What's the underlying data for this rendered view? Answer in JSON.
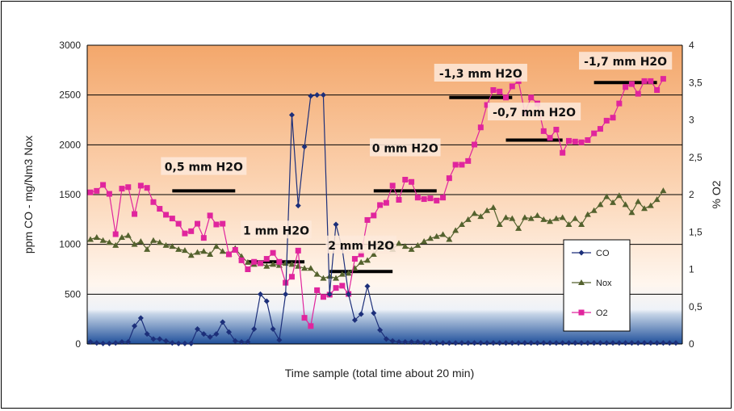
{
  "chart_data": {
    "type": "line",
    "xlabel": "Time sample (total time about 20 min)",
    "ylabel": "ppm CO - mg/Nm3 Nox",
    "y2label": "% O2",
    "ylim": [
      0,
      3000
    ],
    "y2lim": [
      0,
      4
    ],
    "yticks": [
      "0",
      "500",
      "1000",
      "1500",
      "2000",
      "2500",
      "3000"
    ],
    "y2ticks": [
      "0",
      "0,5",
      "1",
      "1,5",
      "2",
      "2,5",
      "3",
      "3,5",
      "4"
    ],
    "grid": "horizontal",
    "legend_position": "right",
    "background": {
      "top_color": "#f0a56a",
      "bottom_color": "#1f4f9a"
    },
    "series": [
      {
        "name": "CO",
        "axis": "left",
        "color": "#1c2f7a",
        "marker": "diamond",
        "values": [
          20,
          10,
          5,
          5,
          10,
          20,
          20,
          180,
          260,
          100,
          50,
          50,
          30,
          10,
          5,
          5,
          5,
          150,
          100,
          70,
          100,
          220,
          120,
          30,
          20,
          20,
          150,
          500,
          430,
          150,
          40,
          500,
          2300,
          1390,
          1980,
          2490,
          2500,
          2500,
          500,
          1200,
          960,
          500,
          240,
          300,
          580,
          310,
          140,
          50,
          30,
          20,
          20,
          20,
          20,
          15,
          15,
          10,
          10,
          10,
          10,
          10,
          10,
          10,
          10,
          10,
          10,
          10,
          10,
          10,
          10,
          10,
          10,
          10,
          10,
          10,
          10,
          10,
          10,
          10,
          10,
          10,
          10,
          10,
          10,
          10,
          10,
          10,
          10,
          10,
          10,
          10,
          10,
          10,
          10,
          10
        ]
      },
      {
        "name": "Nox",
        "axis": "left",
        "color": "#54622e",
        "marker": "triangle",
        "values": [
          1050,
          1070,
          1040,
          1020,
          990,
          1070,
          1090,
          1000,
          1030,
          950,
          1040,
          1020,
          990,
          980,
          950,
          940,
          890,
          920,
          930,
          900,
          980,
          930,
          900,
          960,
          880,
          820,
          800,
          810,
          780,
          800,
          790,
          810,
          800,
          780,
          760,
          760,
          700,
          660,
          680,
          660,
          700,
          710,
          760,
          820,
          840,
          900,
          980,
          990,
          950,
          1010,
          980,
          950,
          990,
          1030,
          1060,
          1080,
          1100,
          1050,
          1140,
          1200,
          1250,
          1310,
          1280,
          1340,
          1370,
          1200,
          1270,
          1260,
          1160,
          1270,
          1260,
          1290,
          1250,
          1230,
          1260,
          1270,
          1200,
          1260,
          1200,
          1300,
          1340,
          1400,
          1480,
          1420,
          1490,
          1400,
          1320,
          1430,
          1360,
          1390,
          1450,
          1540
        ]
      },
      {
        "name": "O2",
        "axis": "right",
        "color": "#e0259d",
        "marker": "square",
        "values": [
          2.03,
          2.05,
          2.13,
          2.01,
          1.47,
          2.08,
          2.1,
          1.74,
          2.12,
          2.09,
          1.9,
          1.81,
          1.73,
          1.68,
          1.61,
          1.48,
          1.51,
          1.61,
          1.42,
          1.72,
          1.6,
          1.61,
          1.2,
          1.26,
          1.12,
          1.0,
          1.1,
          1.08,
          1.14,
          1.22,
          1.1,
          0.82,
          0.9,
          1.25,
          0.35,
          0.24,
          0.72,
          0.63,
          0.66,
          0.75,
          0.78,
          0.67,
          1.14,
          1.2,
          1.66,
          1.72,
          1.86,
          1.89,
          2.12,
          1.93,
          2.2,
          2.17,
          1.96,
          1.94,
          1.95,
          1.92,
          1.96,
          2.22,
          2.4,
          2.4,
          2.45,
          2.67,
          2.9,
          3.2,
          3.4,
          3.38,
          3.3,
          3.45,
          3.52,
          3.1,
          3.3,
          3.22,
          2.85,
          2.76,
          2.87,
          2.56,
          2.72,
          2.71,
          2.7,
          2.73,
          2.82,
          2.88,
          2.99,
          3.03,
          3.22,
          3.44,
          3.48,
          3.35,
          3.52,
          3.52,
          3.4,
          3.55
        ]
      }
    ],
    "annotations": [
      {
        "text": "0,5 mm H2O",
        "label_left": "0.5 mm",
        "y2": 2.35,
        "bar_from": 13,
        "bar_to": 23,
        "bar_y2": 2.05
      },
      {
        "text": "1 mm H2O",
        "y2": 1.5,
        "bar_from": 25,
        "bar_to": 34,
        "bar_y2": 1.1
      },
      {
        "text": "2 mm H2O",
        "y2": 1.3,
        "bar_from": 38,
        "bar_to": 48,
        "bar_y2": 0.97
      },
      {
        "text": "0 mm H2O",
        "y2": 2.6,
        "bar_from": 45,
        "bar_to": 55,
        "bar_y2": 2.05
      },
      {
        "text": "-1,3 mm H2O",
        "y2": 3.6,
        "bar_from": 57,
        "bar_to": 67,
        "bar_y2": 3.3
      },
      {
        "text": "-0,7 mm H2O",
        "y2": 3.08,
        "bar_from": 66,
        "bar_to": 75,
        "bar_y2": 2.73
      },
      {
        "text": "-1,7 mm H2O",
        "y2": 3.76,
        "bar_from": 80,
        "bar_to": 90,
        "bar_y2": 3.5
      }
    ]
  }
}
